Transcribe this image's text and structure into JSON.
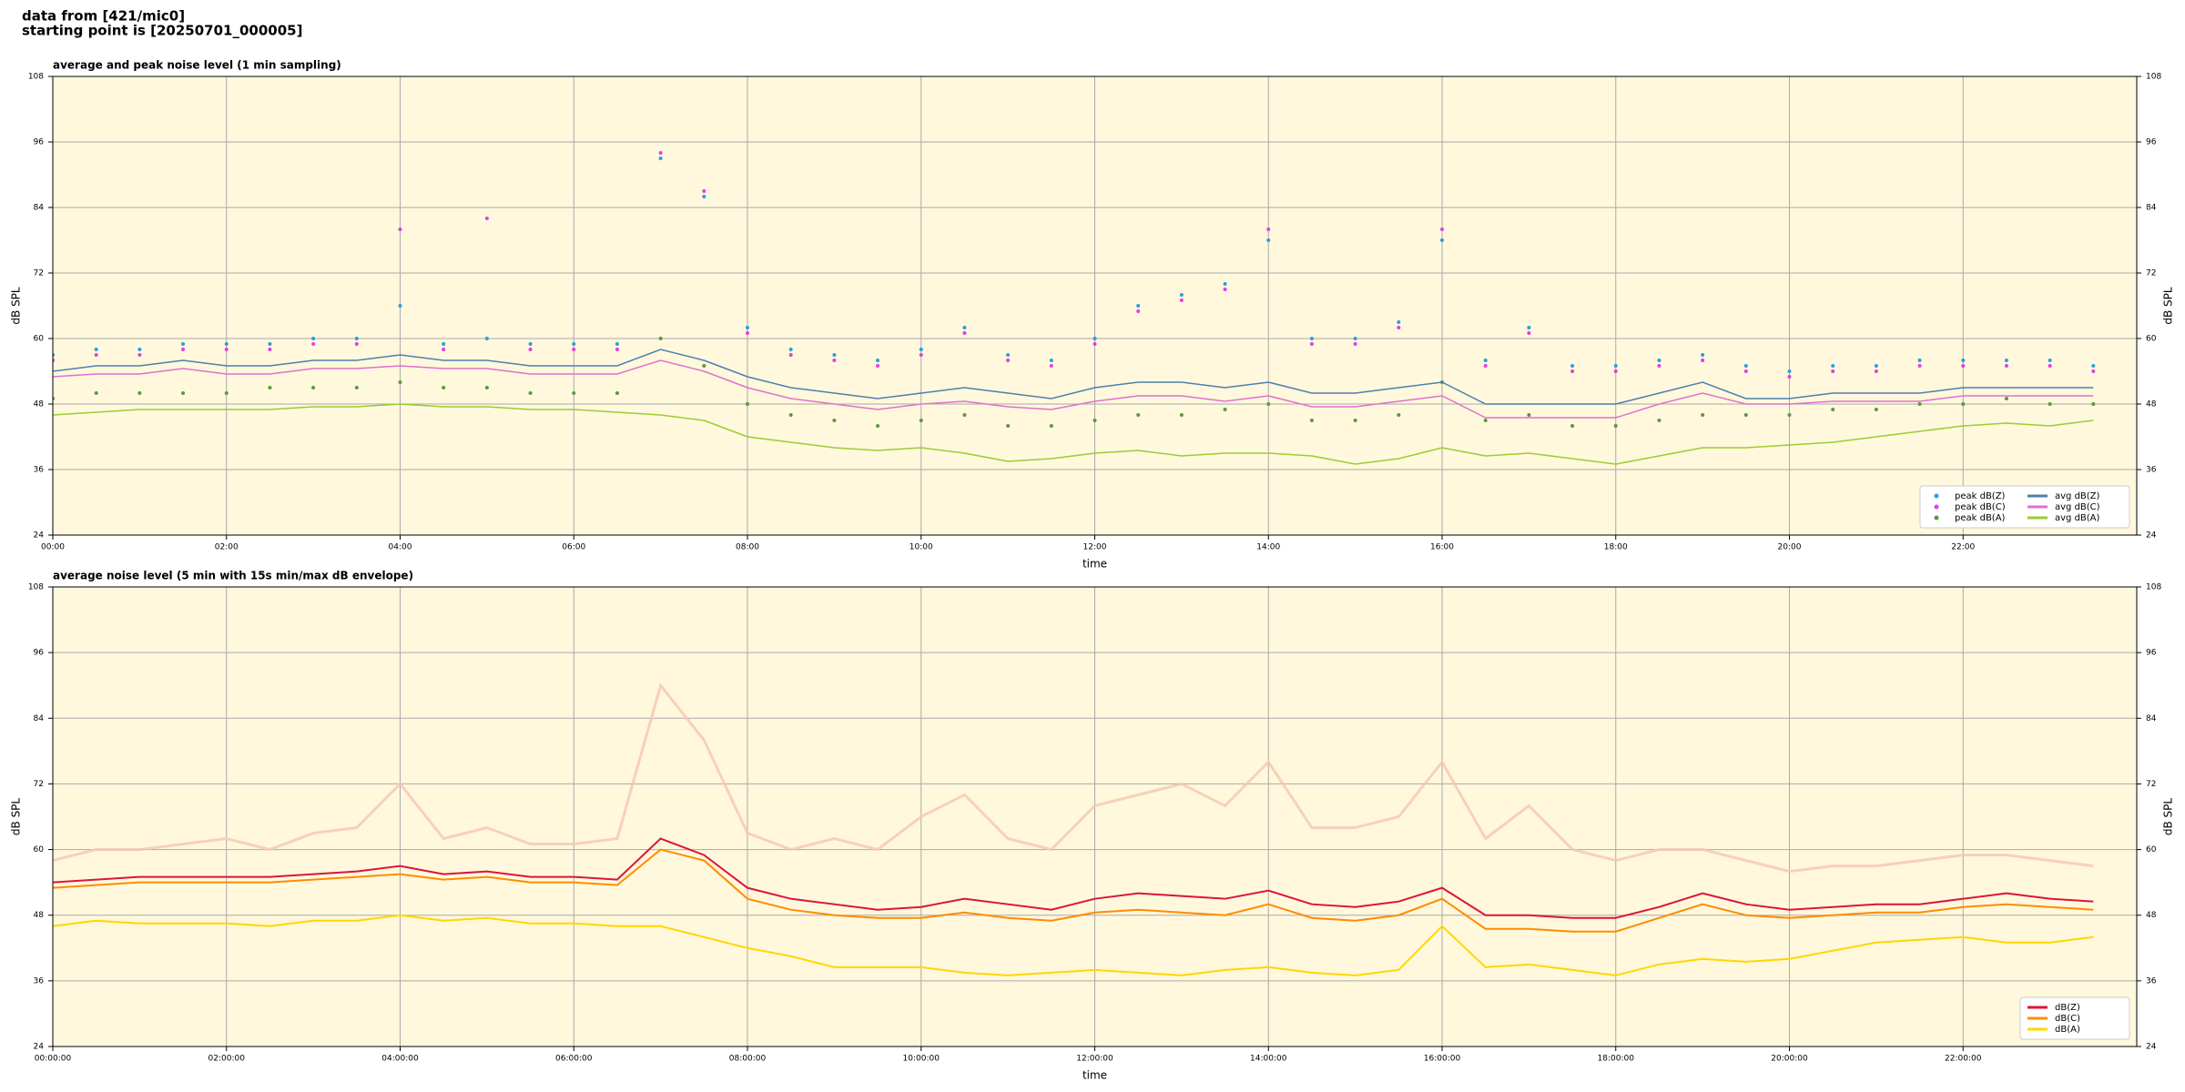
{
  "header": {
    "source": "data from [421/mic0]",
    "start": "starting point is [20250701_000005]"
  },
  "chart_data": [
    {
      "type": "line",
      "title": "average and peak noise level (1 min sampling)",
      "xlabel": "time",
      "ylabel": "dB SPL",
      "x": [
        0,
        0.5,
        1,
        1.5,
        2,
        2.5,
        3,
        3.5,
        4,
        4.5,
        5,
        5.5,
        6,
        6.5,
        7,
        7.5,
        8,
        8.5,
        9,
        9.5,
        10,
        10.5,
        11,
        11.5,
        12,
        12.5,
        13,
        13.5,
        14,
        14.5,
        15,
        15.5,
        16,
        16.5,
        17,
        17.5,
        18,
        18.5,
        19,
        19.5,
        20,
        20.5,
        21,
        21.5,
        22,
        22.5,
        23,
        23.5
      ],
      "xlim": [
        0,
        24
      ],
      "xticks": [
        {
          "value": 0,
          "label": "00:00"
        },
        {
          "value": 2,
          "label": "02:00"
        },
        {
          "value": 4,
          "label": "04:00"
        },
        {
          "value": 6,
          "label": "06:00"
        },
        {
          "value": 8,
          "label": "08:00"
        },
        {
          "value": 10,
          "label": "10:00"
        },
        {
          "value": 12,
          "label": "12:00"
        },
        {
          "value": 14,
          "label": "14:00"
        },
        {
          "value": 16,
          "label": "16:00"
        },
        {
          "value": 18,
          "label": "18:00"
        },
        {
          "value": 20,
          "label": "20:00"
        },
        {
          "value": 22,
          "label": "22:00"
        }
      ],
      "ylim": [
        24,
        108
      ],
      "yticks": [
        24,
        36,
        48,
        60,
        72,
        84,
        96,
        108
      ],
      "grid": true,
      "legend": "lower right",
      "legend_columns": 2,
      "series": [
        {
          "name": "peak dB(Z)",
          "style": "scatter",
          "color": "#2a9fe0",
          "values": [
            57,
            58,
            58,
            59,
            59,
            59,
            60,
            60,
            66,
            59,
            60,
            59,
            59,
            59,
            93,
            86,
            62,
            58,
            57,
            56,
            58,
            62,
            57,
            56,
            60,
            66,
            68,
            70,
            78,
            60,
            60,
            63,
            78,
            56,
            62,
            55,
            55,
            56,
            57,
            55,
            54,
            55,
            55,
            56,
            56,
            56,
            56,
            55
          ]
        },
        {
          "name": "peak dB(C)",
          "style": "scatter",
          "color": "#e040e0",
          "values": [
            56,
            57,
            57,
            58,
            58,
            58,
            59,
            59,
            80,
            58,
            82,
            58,
            58,
            58,
            94,
            87,
            61,
            57,
            56,
            55,
            57,
            61,
            56,
            55,
            59,
            65,
            67,
            69,
            80,
            59,
            59,
            62,
            80,
            55,
            61,
            54,
            54,
            55,
            56,
            54,
            53,
            54,
            54,
            55,
            55,
            55,
            55,
            54
          ]
        },
        {
          "name": "peak dB(A)",
          "style": "scatter",
          "color": "#5a9a3a",
          "values": [
            49,
            50,
            50,
            50,
            50,
            51,
            51,
            51,
            52,
            51,
            51,
            50,
            50,
            50,
            60,
            55,
            48,
            46,
            45,
            44,
            45,
            46,
            44,
            44,
            45,
            46,
            46,
            47,
            48,
            45,
            45,
            46,
            52,
            45,
            46,
            44,
            44,
            45,
            46,
            46,
            46,
            47,
            47,
            48,
            48,
            49,
            48,
            48
          ]
        },
        {
          "name": "avg dB(Z)",
          "style": "line",
          "color": "#4f7fb0",
          "values": [
            54,
            55,
            55,
            56,
            55,
            55,
            56,
            56,
            57,
            56,
            56,
            55,
            55,
            55,
            58,
            56,
            53,
            51,
            50,
            49,
            50,
            51,
            50,
            49,
            51,
            52,
            52,
            51,
            52,
            50,
            50,
            51,
            52,
            48,
            48,
            48,
            48,
            50,
            52,
            49,
            49,
            50,
            50,
            50,
            51,
            51,
            51,
            51
          ]
        },
        {
          "name": "avg dB(C)",
          "style": "line",
          "color": "#e070d0",
          "values": [
            53,
            53.5,
            53.5,
            54.5,
            53.5,
            53.5,
            54.5,
            54.5,
            55,
            54.5,
            54.5,
            53.5,
            53.5,
            53.5,
            56,
            54,
            51,
            49,
            48,
            47,
            48,
            48.5,
            47.5,
            47,
            48.5,
            49.5,
            49.5,
            48.5,
            49.5,
            47.5,
            47.5,
            48.5,
            49.5,
            45.5,
            45.5,
            45.5,
            45.5,
            48,
            50,
            48,
            48,
            48.5,
            48.5,
            48.5,
            49.5,
            49.5,
            49.5,
            49.5
          ]
        },
        {
          "name": "avg dB(A)",
          "style": "line",
          "color": "#9acd32",
          "values": [
            46,
            46.5,
            47,
            47,
            47,
            47,
            47.5,
            47.5,
            48,
            47.5,
            47.5,
            47,
            47,
            46.5,
            46,
            45,
            42,
            41,
            40,
            39.5,
            40,
            39,
            37.5,
            38,
            39,
            39.5,
            38.5,
            39,
            39,
            38.5,
            37,
            38,
            40,
            38.5,
            39,
            38,
            37,
            38.5,
            40,
            40,
            40.5,
            41,
            42,
            43,
            44,
            44.5,
            44,
            45
          ]
        }
      ]
    },
    {
      "type": "line",
      "title": "average noise level (5 min with 15s min/max dB envelope)",
      "xlabel": "time",
      "ylabel": "dB SPL",
      "x": [
        0,
        0.5,
        1,
        1.5,
        2,
        2.5,
        3,
        3.5,
        4,
        4.5,
        5,
        5.5,
        6,
        6.5,
        7,
        7.5,
        8,
        8.5,
        9,
        9.5,
        10,
        10.5,
        11,
        11.5,
        12,
        12.5,
        13,
        13.5,
        14,
        14.5,
        15,
        15.5,
        16,
        16.5,
        17,
        17.5,
        18,
        18.5,
        19,
        19.5,
        20,
        20.5,
        21,
        21.5,
        22,
        22.5,
        23,
        23.5
      ],
      "xlim": [
        0,
        24
      ],
      "xticks": [
        {
          "value": 0,
          "label": "00:00:00"
        },
        {
          "value": 2,
          "label": "02:00:00"
        },
        {
          "value": 4,
          "label": "04:00:00"
        },
        {
          "value": 6,
          "label": "06:00:00"
        },
        {
          "value": 8,
          "label": "08:00:00"
        },
        {
          "value": 10,
          "label": "10:00:00"
        },
        {
          "value": 12,
          "label": "12:00:00"
        },
        {
          "value": 14,
          "label": "14:00:00"
        },
        {
          "value": 16,
          "label": "16:00:00"
        },
        {
          "value": 18,
          "label": "18:00:00"
        },
        {
          "value": 20,
          "label": "20:00:00"
        },
        {
          "value": 22,
          "label": "22:00:00"
        }
      ],
      "ylim": [
        24,
        108
      ],
      "yticks": [
        24,
        36,
        48,
        60,
        72,
        84,
        96,
        108
      ],
      "grid": true,
      "legend": "lower right",
      "legend_columns": 1,
      "envelope": {
        "color": "#f5c6b4",
        "values": [
          58,
          60,
          60,
          61,
          62,
          60,
          63,
          64,
          72,
          62,
          64,
          61,
          61,
          62,
          90,
          80,
          63,
          60,
          62,
          60,
          66,
          70,
          62,
          60,
          68,
          70,
          72,
          68,
          76,
          64,
          64,
          66,
          76,
          62,
          68,
          60,
          58,
          60,
          60,
          58,
          56,
          57,
          57,
          58,
          59,
          59,
          58,
          57
        ]
      },
      "series": [
        {
          "name": "dB(Z)",
          "style": "line",
          "color": "#dc143c",
          "values": [
            54,
            54.5,
            55,
            55,
            55,
            55,
            55.5,
            56,
            57,
            55.5,
            56,
            55,
            55,
            54.5,
            62,
            59,
            53,
            51,
            50,
            49,
            49.5,
            51,
            50,
            49,
            51,
            52,
            51.5,
            51,
            52.5,
            50,
            49.5,
            50.5,
            53,
            48,
            48,
            47.5,
            47.5,
            49.5,
            52,
            50,
            49,
            49.5,
            50,
            50,
            51,
            52,
            51,
            50.5
          ]
        },
        {
          "name": "dB(C)",
          "style": "line",
          "color": "#ff8c00",
          "values": [
            53,
            53.5,
            54,
            54,
            54,
            54,
            54.5,
            55,
            55.5,
            54.5,
            55,
            54,
            54,
            53.5,
            60,
            58,
            51,
            49,
            48,
            47.5,
            47.5,
            48.5,
            47.5,
            47,
            48.5,
            49,
            48.5,
            48,
            50,
            47.5,
            47,
            48,
            51,
            45.5,
            45.5,
            45,
            45,
            47.5,
            50,
            48,
            47.5,
            48,
            48.5,
            48.5,
            49.5,
            50,
            49.5,
            49
          ]
        },
        {
          "name": "dB(A)",
          "style": "line",
          "color": "#ffd700",
          "values": [
            46,
            47,
            46.5,
            46.5,
            46.5,
            46,
            47,
            47,
            48,
            47,
            47.5,
            46.5,
            46.5,
            46,
            46,
            44,
            42,
            40.5,
            38.5,
            38.5,
            38.5,
            37.5,
            37,
            37.5,
            38,
            37.5,
            37,
            38,
            38.5,
            37.5,
            37,
            38,
            46,
            38.5,
            39,
            38,
            37,
            39,
            40,
            39.5,
            40,
            41.5,
            43,
            43.5,
            44,
            43,
            43,
            44
          ]
        }
      ]
    }
  ]
}
